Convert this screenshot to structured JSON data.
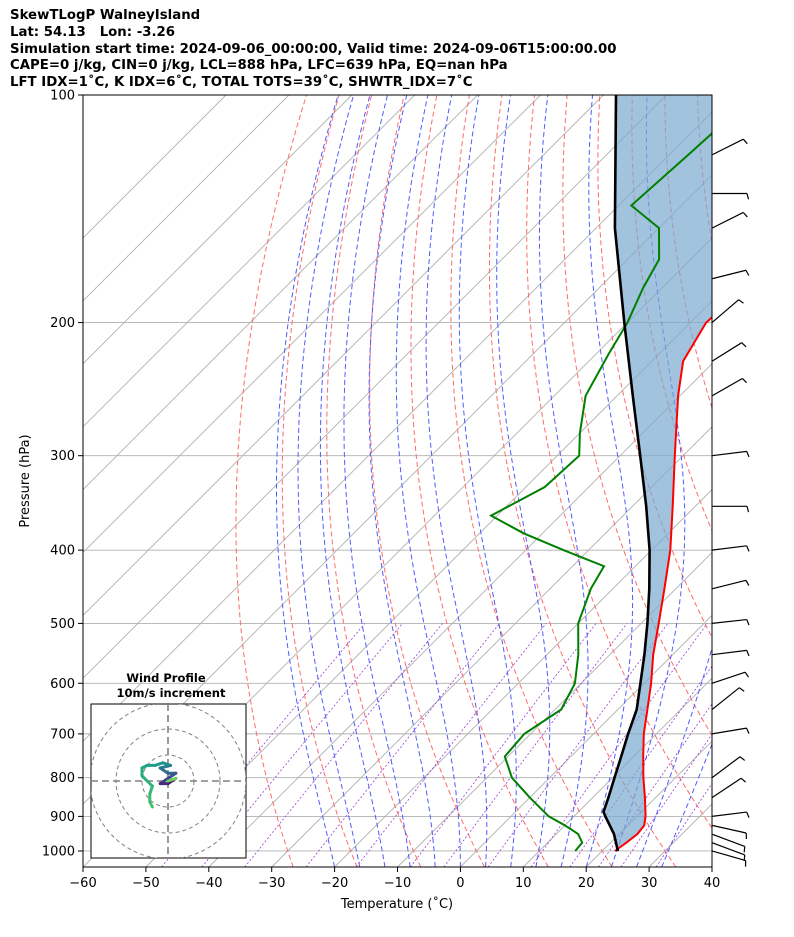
{
  "header": {
    "line1": "SkewTLogP WalneyIsland",
    "line2": "Lat: 54.13   Lon: -3.26",
    "line3": "Simulation start time: 2024-09-06_00:00:00, Valid time: 2024-09-06T15:00:00.00",
    "line4": "CAPE=0 j/kg, CIN=0 j/kg, LCL=888 hPa, LFC=639 hPa, EQ=nan hPa",
    "line5": "LFT IDX=1˚C, K IDX=6˚C, TOTAL TOTS=39˚C, SHWTR_IDX=7˚C"
  },
  "chart_data": {
    "type": "skewt",
    "xlabel": "Temperature (˚C)",
    "ylabel": "Pressure (hPa)",
    "xlim": [
      -60,
      40
    ],
    "ylim": [
      1050,
      100
    ],
    "x_ticks": [
      -60,
      -50,
      -40,
      -30,
      -20,
      -10,
      0,
      10,
      20,
      30,
      40
    ],
    "y_ticks": [
      1000,
      900,
      800,
      700,
      600,
      500,
      400,
      300,
      200,
      100
    ],
    "temperature_profile": [
      {
        "p": 1000,
        "t": 22.0
      },
      {
        "p": 975,
        "t": 22.5
      },
      {
        "p": 950,
        "t": 22.9
      },
      {
        "p": 925,
        "t": 22.6
      },
      {
        "p": 900,
        "t": 21.4
      },
      {
        "p": 850,
        "t": 18.3
      },
      {
        "p": 800,
        "t": 14.9
      },
      {
        "p": 750,
        "t": 11.5
      },
      {
        "p": 700,
        "t": 8.0
      },
      {
        "p": 650,
        "t": 4.7
      },
      {
        "p": 600,
        "t": 1.1
      },
      {
        "p": 550,
        "t": -3.1
      },
      {
        "p": 500,
        "t": -7.2
      },
      {
        "p": 450,
        "t": -11.8
      },
      {
        "p": 400,
        "t": -17.0
      },
      {
        "p": 350,
        "t": -23.6
      },
      {
        "p": 300,
        "t": -31.3
      },
      {
        "p": 250,
        "t": -40.3
      },
      {
        "p": 225,
        "t": -45.0
      },
      {
        "p": 200,
        "t": -47.5
      },
      {
        "p": 185,
        "t": -47.0
      },
      {
        "p": 170,
        "t": -48.0
      },
      {
        "p": 160,
        "t": -51.0
      },
      {
        "p": 150,
        "t": -52.0
      },
      {
        "p": 140,
        "t": -51.3
      },
      {
        "p": 130,
        "t": -50.7
      },
      {
        "p": 120,
        "t": -53.1
      },
      {
        "p": 110,
        "t": -57.6
      },
      {
        "p": 100,
        "t": -62.5
      }
    ],
    "dewpoint_profile": [
      {
        "p": 1000,
        "t": 15.7
      },
      {
        "p": 975,
        "t": 15.5
      },
      {
        "p": 950,
        "t": 13.5
      },
      {
        "p": 925,
        "t": 10.0
      },
      {
        "p": 900,
        "t": 6.0
      },
      {
        "p": 850,
        "t": 0.0
      },
      {
        "p": 800,
        "t": -6.0
      },
      {
        "p": 750,
        "t": -10.5
      },
      {
        "p": 700,
        "t": -11.0
      },
      {
        "p": 650,
        "t": -9.0
      },
      {
        "p": 600,
        "t": -11.0
      },
      {
        "p": 550,
        "t": -15.0
      },
      {
        "p": 500,
        "t": -20.0
      },
      {
        "p": 450,
        "t": -23.5
      },
      {
        "p": 420,
        "t": -25.0
      },
      {
        "p": 400,
        "t": -34.0
      },
      {
        "p": 380,
        "t": -43.0
      },
      {
        "p": 360,
        "t": -51.0
      },
      {
        "p": 330,
        "t": -47.0
      },
      {
        "p": 300,
        "t": -46.5
      },
      {
        "p": 280,
        "t": -50.0
      },
      {
        "p": 250,
        "t": -55.0
      },
      {
        "p": 220,
        "t": -58.0
      },
      {
        "p": 200,
        "t": -60.0
      },
      {
        "p": 180,
        "t": -63.0
      },
      {
        "p": 165,
        "t": -65.0
      },
      {
        "p": 150,
        "t": -70.0
      },
      {
        "p": 140,
        "t": -78.0
      },
      {
        "p": 120,
        "t": -77.0
      },
      {
        "p": 100,
        "t": -76.0
      }
    ],
    "parcel_profile": [
      {
        "p": 1000,
        "t": 22.5
      },
      {
        "p": 950,
        "t": 19.2
      },
      {
        "p": 900,
        "t": 15.0
      },
      {
        "p": 888,
        "t": 14.0
      },
      {
        "p": 850,
        "t": 12.5
      },
      {
        "p": 800,
        "t": 10.3
      },
      {
        "p": 750,
        "t": 8.0
      },
      {
        "p": 700,
        "t": 5.5
      },
      {
        "p": 650,
        "t": 3.0
      },
      {
        "p": 600,
        "t": -0.6
      },
      {
        "p": 550,
        "t": -4.5
      },
      {
        "p": 500,
        "t": -9.0
      },
      {
        "p": 450,
        "t": -14.2
      },
      {
        "p": 400,
        "t": -20.3
      },
      {
        "p": 350,
        "t": -27.8
      },
      {
        "p": 300,
        "t": -36.8
      },
      {
        "p": 250,
        "t": -47.5
      },
      {
        "p": 200,
        "t": -60.5
      },
      {
        "p": 150,
        "t": -77.0
      },
      {
        "p": 100,
        "t": -98.0
      }
    ],
    "dry_adiabats_theta_c": [
      -30,
      -20,
      -10,
      0,
      10,
      20,
      30,
      40,
      50,
      60,
      70,
      80,
      90,
      100
    ],
    "moist_adiabats_start_c": [
      -20,
      -16,
      -12,
      -8,
      -4,
      0,
      4,
      8,
      12,
      16,
      20,
      24,
      28,
      32
    ],
    "mixing_ratio_lines": [
      0.05,
      0.1,
      0.2,
      0.5,
      1,
      2,
      3,
      5,
      8,
      12,
      16,
      20,
      28
    ],
    "wind_barbs": [
      {
        "p": 1000,
        "u": 7,
        "v": -2
      },
      {
        "p": 975,
        "u": 8,
        "v": -3
      },
      {
        "p": 950,
        "u": 8,
        "v": -3
      },
      {
        "p": 925,
        "u": 9,
        "v": -2
      },
      {
        "p": 900,
        "u": 8,
        "v": 1
      },
      {
        "p": 850,
        "u": 6,
        "v": 4
      },
      {
        "p": 800,
        "u": 4,
        "v": 3
      },
      {
        "p": 700,
        "u": 6,
        "v": 1
      },
      {
        "p": 650,
        "u": 5,
        "v": 4
      },
      {
        "p": 600,
        "u": 6,
        "v": 2
      },
      {
        "p": 550,
        "u": 8,
        "v": 1
      },
      {
        "p": 500,
        "u": 9,
        "v": 1
      },
      {
        "p": 450,
        "u": 8,
        "v": 2
      },
      {
        "p": 400,
        "u": 8,
        "v": 1
      },
      {
        "p": 350,
        "u": 8,
        "v": 0
      },
      {
        "p": 300,
        "u": 8,
        "v": 1
      },
      {
        "p": 250,
        "u": 7,
        "v": 4
      },
      {
        "p": 225,
        "u": 8,
        "v": 5
      },
      {
        "p": 200,
        "u": 7,
        "v": 6
      },
      {
        "p": 175,
        "u": 8,
        "v": 2
      },
      {
        "p": 150,
        "u": 6,
        "v": 3
      },
      {
        "p": 135,
        "u": 8,
        "v": 0
      },
      {
        "p": 120,
        "u": 6,
        "v": 3
      }
    ],
    "hodograph": {
      "title": "Wind Profile",
      "subtitle": "10m/s increment",
      "rings_ms": [
        10,
        20,
        30
      ],
      "points": [
        {
          "u": -6,
          "v": -10
        },
        {
          "u": -7,
          "v": -8
        },
        {
          "u": -7,
          "v": -5
        },
        {
          "u": -6,
          "v": -2
        },
        {
          "u": -8,
          "v": 0
        },
        {
          "u": -10,
          "v": 2
        },
        {
          "u": -10,
          "v": 5
        },
        {
          "u": -8,
          "v": 6
        },
        {
          "u": -5,
          "v": 6
        },
        {
          "u": -2,
          "v": 7
        },
        {
          "u": 1,
          "v": 6
        },
        {
          "u": -3,
          "v": 5
        },
        {
          "u": 0,
          "v": 3
        },
        {
          "u": 3,
          "v": 3
        },
        {
          "u": 0,
          "v": 1
        },
        {
          "u": -3,
          "v": -1
        },
        {
          "u": 0,
          "v": -1
        },
        {
          "u": 3,
          "v": 1
        },
        {
          "u": 0,
          "v": 0
        }
      ]
    }
  }
}
